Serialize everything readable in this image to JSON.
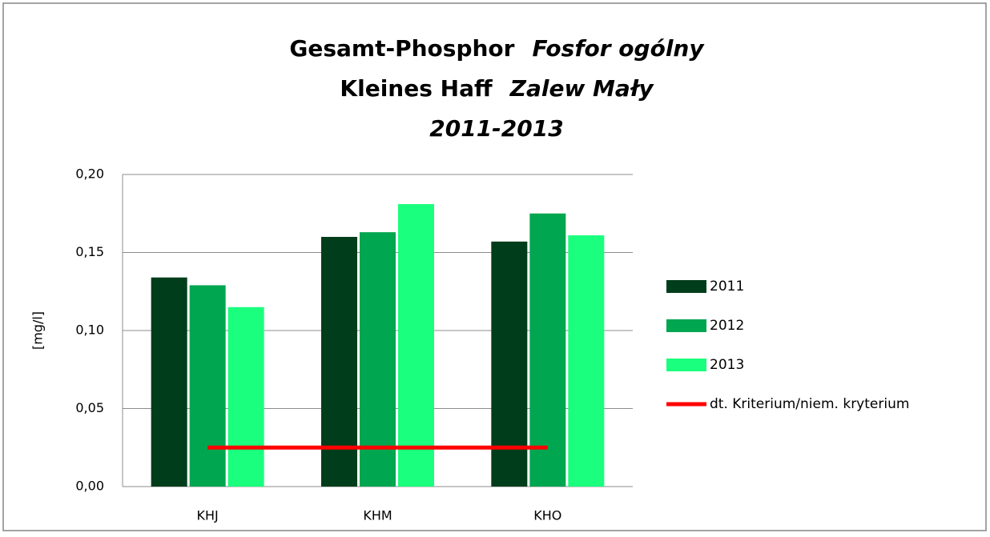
{
  "chart_data": {
    "type": "bar",
    "title_lines": [
      [
        "Gesamt-Phosphor",
        "Fosfor ogólny"
      ],
      [
        "Kleines Haff",
        "Zalew Mały"
      ],
      [
        "2011-2013"
      ]
    ],
    "title_italic": [
      [
        false,
        true
      ],
      [
        false,
        true
      ],
      [
        true
      ]
    ],
    "ylabel": "[mg/l]",
    "categories": [
      "KHJ",
      "KHM",
      "KHO"
    ],
    "series": [
      {
        "name": "2011",
        "color": "#003d1a",
        "values": [
          0.134,
          0.16,
          0.157
        ]
      },
      {
        "name": "2012",
        "color": "#00a650",
        "values": [
          0.129,
          0.163,
          0.175
        ]
      },
      {
        "name": "2013",
        "color": "#1aff7d",
        "values": [
          0.115,
          0.181,
          0.161
        ]
      },
      {
        "name": "dt. Kriterium/niem. kryterium",
        "color": "#ff0000",
        "type": "line",
        "values": [
          0.025,
          0.025,
          0.025
        ]
      }
    ],
    "ylim": [
      0,
      0.2
    ],
    "yticks": [
      {
        "value": 0,
        "label": "0,00"
      },
      {
        "value": 0.05,
        "label": "0,05"
      },
      {
        "value": 0.1,
        "label": "0,10"
      },
      {
        "value": 0.15,
        "label": "0,15"
      },
      {
        "value": 0.2,
        "label": "0,20"
      }
    ],
    "grid": true,
    "legend": "right"
  }
}
